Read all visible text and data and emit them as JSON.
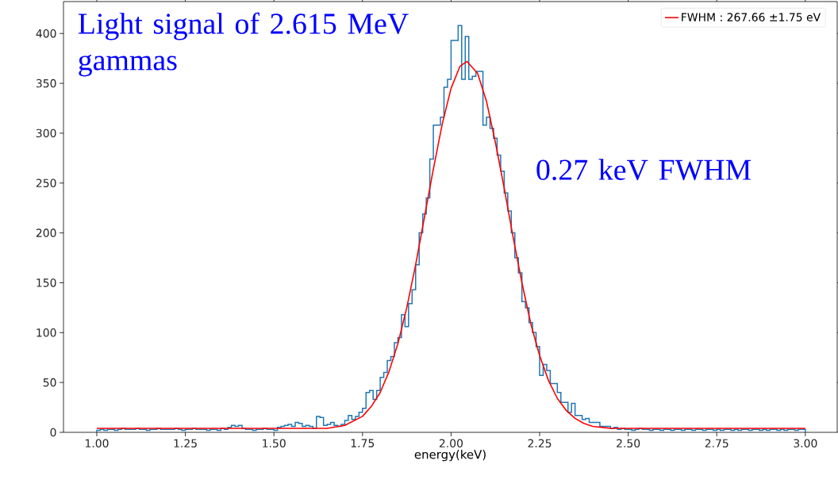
{
  "chart_data": {
    "type": "histogram",
    "xlabel": "energy(keV)",
    "color": "#1f77b4",
    "bins": [
      1.0,
      1.01,
      1.02,
      1.03,
      1.04,
      1.05,
      1.06,
      1.07,
      1.08,
      1.09,
      1.1,
      1.11,
      1.12,
      1.13,
      1.14,
      1.15,
      1.16,
      1.17,
      1.18,
      1.19,
      1.2,
      1.21,
      1.22,
      1.23,
      1.24,
      1.25,
      1.26,
      1.27,
      1.28,
      1.29,
      1.3,
      1.31,
      1.32,
      1.33,
      1.34,
      1.35,
      1.36,
      1.37,
      1.38,
      1.39,
      1.4,
      1.41,
      1.42,
      1.43,
      1.44,
      1.45,
      1.46,
      1.47,
      1.48,
      1.49,
      1.5,
      1.51,
      1.52,
      1.53,
      1.54,
      1.55,
      1.56,
      1.57,
      1.58,
      1.59,
      1.6,
      1.61,
      1.62,
      1.63,
      1.64,
      1.65,
      1.66,
      1.67,
      1.68,
      1.69,
      1.7,
      1.71,
      1.72,
      1.73,
      1.74,
      1.75,
      1.76,
      1.77,
      1.78,
      1.79,
      1.8,
      1.81,
      1.82,
      1.83,
      1.84,
      1.85,
      1.86,
      1.87,
      1.88,
      1.89,
      1.9,
      1.91,
      1.92,
      1.93,
      1.94,
      1.95,
      1.96,
      1.97,
      1.98,
      1.99,
      2.0,
      2.01,
      2.02,
      2.03,
      2.04,
      2.05,
      2.06,
      2.07,
      2.08,
      2.09,
      2.1,
      2.11,
      2.12,
      2.13,
      2.14,
      2.15,
      2.16,
      2.17,
      2.18,
      2.19,
      2.2,
      2.21,
      2.22,
      2.23,
      2.24,
      2.25,
      2.26,
      2.27,
      2.28,
      2.29,
      2.3,
      2.31,
      2.32,
      2.33,
      2.34,
      2.35,
      2.36,
      2.37,
      2.38,
      2.39,
      2.4,
      2.41,
      2.42,
      2.43,
      2.44,
      2.45,
      2.46,
      2.47,
      2.48,
      2.49,
      2.5,
      2.51,
      2.52,
      2.53,
      2.54,
      2.55,
      2.56,
      2.57,
      2.58,
      2.59,
      2.6,
      2.61,
      2.62,
      2.63,
      2.64,
      2.65,
      2.66,
      2.67,
      2.68,
      2.69,
      2.7,
      2.71,
      2.72,
      2.73,
      2.74,
      2.75,
      2.76,
      2.77,
      2.78,
      2.79,
      2.8,
      2.81,
      2.82,
      2.83,
      2.84,
      2.85,
      2.86,
      2.87,
      2.88,
      2.89,
      2.9,
      2.91,
      2.92,
      2.93,
      2.94,
      2.95,
      2.96,
      2.97,
      2.98,
      2.99,
      3.0
    ],
    "values": [
      2,
      3,
      2,
      3,
      3,
      2,
      3,
      4,
      3,
      3,
      3,
      4,
      3,
      3,
      2,
      3,
      3,
      4,
      3,
      3,
      3,
      3,
      4,
      3,
      2,
      3,
      3,
      4,
      3,
      3,
      3,
      2,
      3,
      3,
      2,
      4,
      3,
      5,
      7,
      6,
      7,
      4,
      3,
      3,
      2,
      3,
      3,
      4,
      3,
      3,
      2,
      5,
      6,
      7,
      8,
      6,
      10,
      9,
      6,
      7,
      6,
      4,
      16,
      15,
      7,
      8,
      10,
      7,
      6,
      8,
      12,
      17,
      13,
      16,
      20,
      24,
      40,
      42,
      33,
      42,
      55,
      60,
      72,
      76,
      90,
      95,
      118,
      106,
      129,
      143,
      168,
      200,
      219,
      235,
      274,
      308,
      308,
      316,
      346,
      354,
      393,
      393,
      408,
      354,
      397,
      354,
      357,
      362,
      362,
      308,
      316,
      305,
      295,
      278,
      262,
      240,
      222,
      200,
      175,
      160,
      131,
      125,
      110,
      100,
      86,
      57,
      68,
      62,
      49,
      49,
      40,
      30,
      30,
      20,
      29,
      17,
      17,
      13,
      14,
      10,
      10,
      10,
      6,
      6,
      6,
      4,
      5,
      3,
      4,
      3,
      3,
      2,
      3,
      4,
      3,
      3,
      2,
      3,
      3,
      2,
      3,
      3,
      2,
      3,
      3,
      2,
      3,
      3,
      2,
      3,
      3,
      2,
      3,
      3,
      2,
      3,
      2,
      3,
      3,
      2,
      3,
      2,
      3,
      3,
      2,
      3,
      3,
      2,
      3,
      2,
      3,
      3,
      2,
      3,
      2,
      3,
      3,
      2,
      3,
      3
    ],
    "series": [
      {
        "type": "line",
        "name": "FWHM : 267.66 ±1.75 eV",
        "color": "#ff0000",
        "x": [
          1.0,
          1.5,
          1.6,
          1.65,
          1.7,
          1.75,
          1.775,
          1.8,
          1.825,
          1.85,
          1.875,
          1.9,
          1.925,
          1.95,
          1.975,
          2.0,
          2.025,
          2.045,
          2.075,
          2.1,
          2.125,
          2.15,
          2.175,
          2.2,
          2.225,
          2.25,
          2.275,
          2.3,
          2.325,
          2.35,
          2.375,
          2.4,
          2.45,
          2.5,
          3.0
        ],
        "values": [
          4,
          4,
          4,
          4,
          7,
          16,
          26,
          40,
          61,
          89,
          125,
          168,
          216,
          264,
          309,
          345,
          367,
          372,
          360,
          332,
          291,
          245,
          196,
          150,
          109,
          77,
          52,
          34,
          22,
          14,
          9,
          6,
          4,
          4,
          4
        ]
      }
    ],
    "xlim": [
      0.906,
      3.09
    ],
    "ylim": [
      0,
      432
    ],
    "xticks": [
      {
        "value": 1.0,
        "label": "1.00"
      },
      {
        "value": 1.25,
        "label": "1.25"
      },
      {
        "value": 1.5,
        "label": "1.50"
      },
      {
        "value": 1.75,
        "label": "1.75"
      },
      {
        "value": 2.0,
        "label": "2.00"
      },
      {
        "value": 2.25,
        "label": "2.25"
      },
      {
        "value": 2.5,
        "label": "2.50"
      },
      {
        "value": 2.75,
        "label": "2.75"
      },
      {
        "value": 3.0,
        "label": "3.00"
      }
    ],
    "yticks": [
      0,
      50,
      100,
      150,
      200,
      250,
      300,
      350,
      400
    ],
    "legend": "top right",
    "annotations": [
      "Light signal of 2.615 MeV gammas",
      "0.27 keV FWHM"
    ]
  }
}
